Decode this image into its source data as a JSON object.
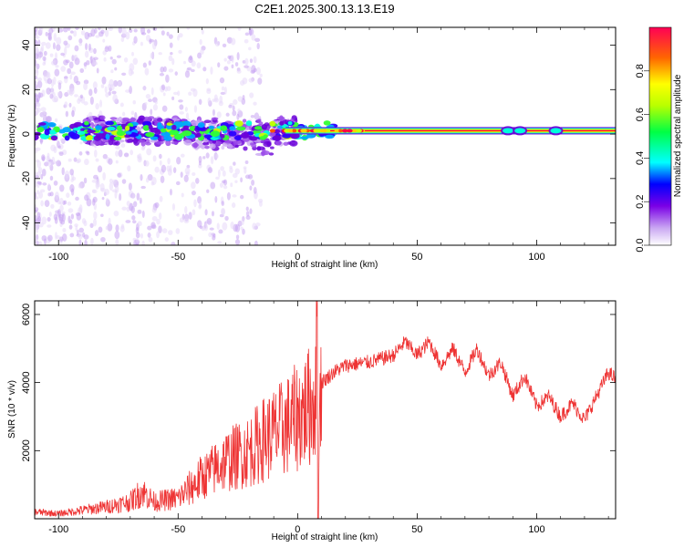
{
  "title": "C2E1.2025.300.13.13.E19",
  "chart_data": [
    {
      "type": "heatmap",
      "title": "C2E1.2025.300.13.13.E19",
      "xlabel": "Height of straight line (km)",
      "ylabel": "Frequency (Hz)",
      "xlim": [
        -110,
        133
      ],
      "ylim": [
        -50,
        48
      ],
      "xticks": [
        -100,
        -50,
        0,
        50,
        100
      ],
      "yticks": [
        -40,
        -20,
        0,
        20,
        40
      ],
      "colorbar": {
        "label": "Normalized spectral amplitude",
        "ticks": [
          0.0,
          0.2,
          0.4,
          0.6,
          0.8
        ],
        "range": [
          0,
          1
        ]
      },
      "description_values": {
        "ridge_frequency_hz": 1.5,
        "ridge_start_km": -110,
        "ridge_end_km": 133
      }
    },
    {
      "type": "line",
      "xlabel": "Height of straight line (km)",
      "ylabel": "SNR (10 * v/v)",
      "xlim": [
        -110,
        133
      ],
      "ylim": [
        0,
        6400
      ],
      "xticks": [
        -100,
        -50,
        0,
        50,
        100
      ],
      "yticks": [
        2000,
        4000,
        6000
      ],
      "series": [
        {
          "name": "SNR",
          "color": "#ee3333",
          "x": [
            -110,
            -100,
            -90,
            -80,
            -70,
            -65,
            -60,
            -50,
            -40,
            -30,
            -20,
            -15,
            -10,
            -5,
            0,
            5,
            8,
            10,
            15,
            20,
            30,
            40,
            45,
            50,
            55,
            60,
            65,
            70,
            75,
            80,
            85,
            90,
            95,
            100,
            105,
            110,
            115,
            120,
            125,
            130,
            133
          ],
          "y": [
            200,
            150,
            250,
            350,
            500,
            800,
            500,
            600,
            1200,
            1700,
            2000,
            2300,
            2500,
            2700,
            3000,
            3300,
            3700,
            4000,
            4300,
            4500,
            4600,
            4800,
            5200,
            4800,
            5200,
            4500,
            5000,
            4300,
            5000,
            4200,
            4600,
            3600,
            4200,
            3300,
            3600,
            3000,
            3400,
            2900,
            3600,
            4300,
            4100
          ]
        }
      ]
    }
  ]
}
